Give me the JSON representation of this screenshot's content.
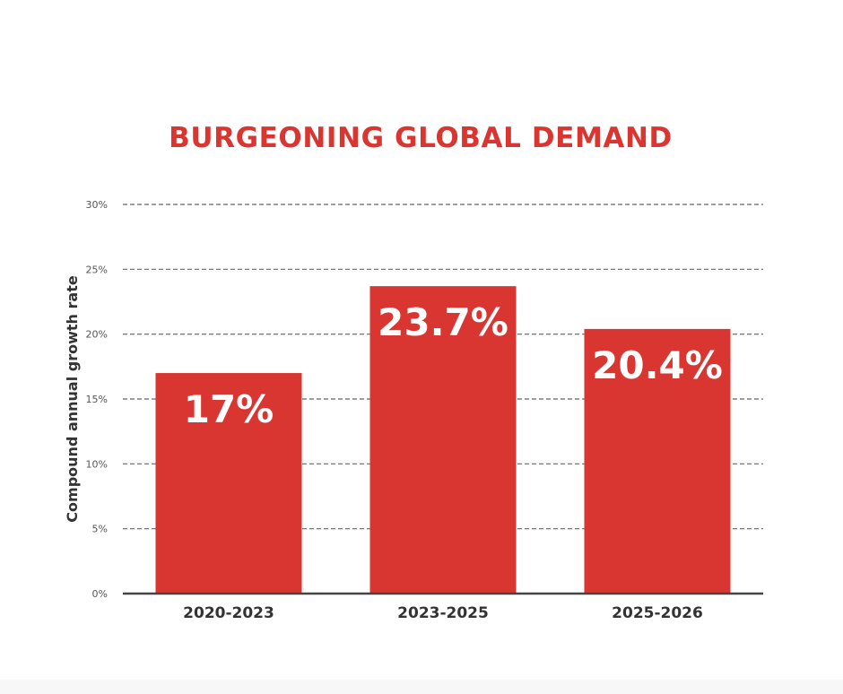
{
  "colors": {
    "title": "#d93632",
    "bar": "#d93632",
    "bar_label": "#ffffff",
    "grid": "#666666",
    "axis": "#444444",
    "tick_text": "#555555",
    "category_text": "#333333",
    "ylabel_text": "#333333"
  },
  "chart_data": {
    "type": "bar",
    "title": "BURGEONING GLOBAL DEMAND",
    "xlabel": "",
    "ylabel": "Compound annual growth rate",
    "categories": [
      "2020-2023",
      "2023-2025",
      "2025-2026"
    ],
    "values": [
      17,
      23.7,
      20.4
    ],
    "data_labels": [
      "17%",
      "23.7%",
      "20.4%"
    ],
    "ylim": [
      0,
      30
    ],
    "yticks": [
      0,
      5,
      10,
      15,
      20,
      25,
      30
    ],
    "ytick_labels": [
      "0%",
      "5%",
      "10%",
      "15%",
      "20%",
      "25%",
      "30%"
    ],
    "grid": true
  }
}
